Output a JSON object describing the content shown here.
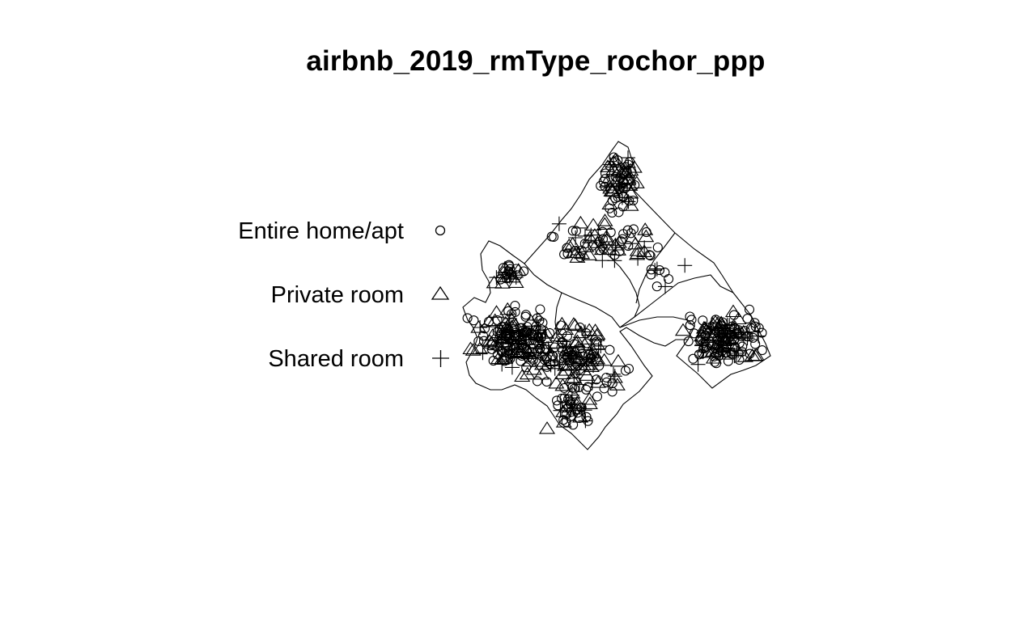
{
  "title": "airbnb_2019_rmType_rochor_ppp",
  "legend": {
    "items": [
      {
        "label": "Entire home/apt",
        "symbol": "circle-icon"
      },
      {
        "label": "Private room",
        "symbol": "triangle-icon"
      },
      {
        "label": "Shared room",
        "symbol": "plus-icon"
      }
    ]
  },
  "colors": {
    "ink": "#000000",
    "background": "#ffffff"
  }
}
